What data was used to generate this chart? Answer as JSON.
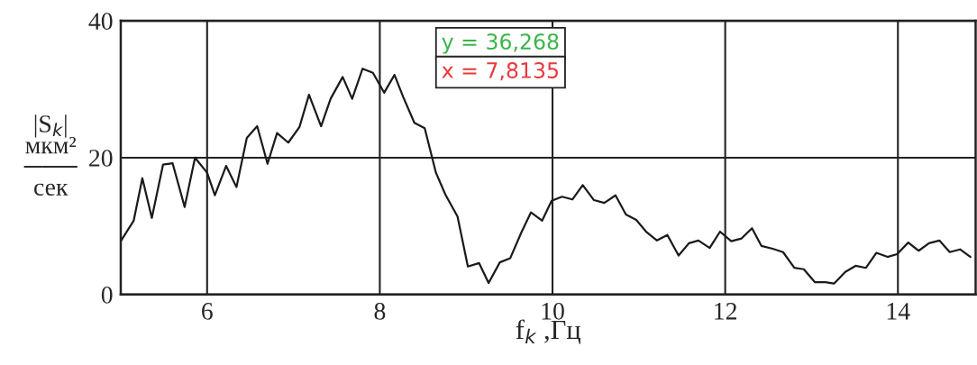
{
  "chart_data": {
    "type": "line",
    "xlabel": "f$_{k}$ ,Гц",
    "ylabel": "|S$_{k}$|\nмкм²\n───\nсек",
    "x": [
      5.0,
      5.15,
      5.25,
      5.36,
      5.49,
      5.6,
      5.74,
      5.86,
      6.0,
      6.09,
      6.22,
      6.34,
      6.46,
      6.58,
      6.7,
      6.81,
      6.94,
      7.07,
      7.18,
      7.32,
      7.43,
      7.57,
      7.68,
      7.8,
      7.92,
      8.05,
      8.17,
      8.27,
      8.4,
      8.52,
      8.65,
      8.76,
      8.9,
      9.02,
      9.15,
      9.26,
      9.39,
      9.51,
      9.64,
      9.75,
      9.88,
      9.99,
      10.11,
      10.23,
      10.35,
      10.48,
      10.6,
      10.73,
      10.85,
      10.97,
      11.09,
      11.21,
      11.33,
      11.46,
      11.58,
      11.69,
      11.82,
      11.94,
      12.07,
      12.19,
      12.31,
      12.42,
      12.55,
      12.67,
      12.8,
      12.91,
      13.04,
      13.16,
      13.26,
      13.39,
      13.51,
      13.63,
      13.75,
      13.88,
      13.99,
      14.12,
      14.24,
      14.36,
      14.48,
      14.6,
      14.72,
      14.84
    ],
    "series": [
      {
        "color": "#1a1a1a",
        "values": [
          7.8,
          10.8,
          17.0,
          11.2,
          19.0,
          19.2,
          12.8,
          20.0,
          17.8,
          14.5,
          18.8,
          15.7,
          22.9,
          24.6,
          19.1,
          23.6,
          22.2,
          24.5,
          29.2,
          24.6,
          28.6,
          31.8,
          28.6,
          33.0,
          32.4,
          29.5,
          32.1,
          28.9,
          25.1,
          24.3,
          17.8,
          14.6,
          11.4,
          4.1,
          4.6,
          1.7,
          4.7,
          5.3,
          9.1,
          12.0,
          10.8,
          13.7,
          14.3,
          13.9,
          16.0,
          13.8,
          13.4,
          14.5,
          11.7,
          10.9,
          9.1,
          7.9,
          8.7,
          5.7,
          7.5,
          7.9,
          6.8,
          9.2,
          7.8,
          8.2,
          9.7,
          7.1,
          6.7,
          6.2,
          3.9,
          3.7,
          1.8,
          1.8,
          1.6,
          3.3,
          4.2,
          3.9,
          6.1,
          5.5,
          5.9,
          7.6,
          6.4,
          7.5,
          7.9,
          6.2,
          6.6,
          5.5
        ]
      }
    ],
    "xlim": [
      5,
      14.9
    ],
    "xticks": [
      6,
      8,
      10,
      12,
      14
    ],
    "ylim": [
      0,
      40
    ],
    "yticks": [
      0,
      20,
      40
    ],
    "grid": true,
    "legend": false,
    "annotations": [
      "y = 36,268",
      "x = 7,8135"
    ]
  }
}
